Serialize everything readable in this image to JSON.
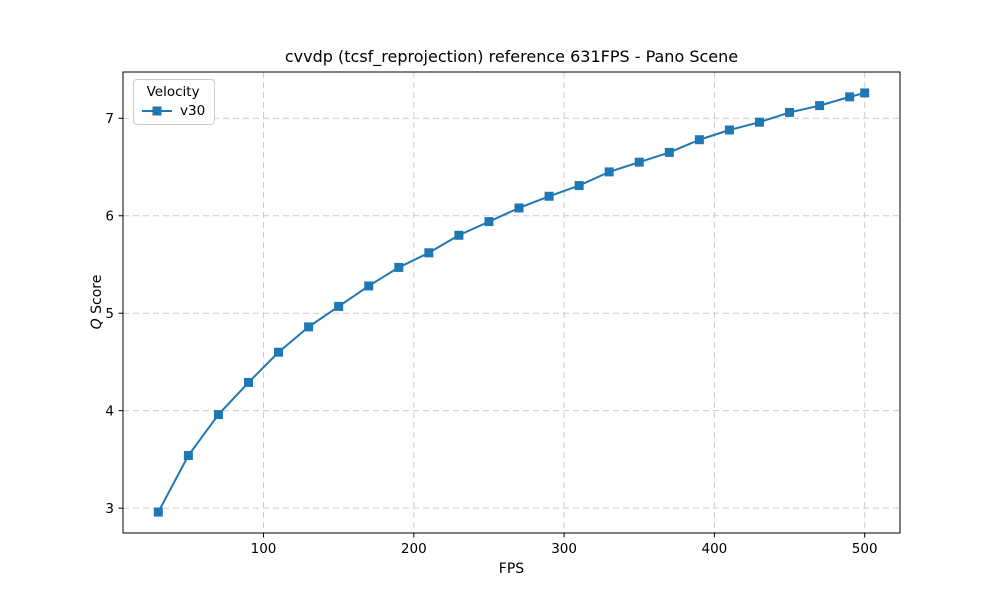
{
  "chart_data": {
    "type": "line",
    "title": "cvvdp (tcsf_reprojection) reference 631FPS - Pano Scene",
    "xlabel": "FPS",
    "ylabel": "Q Score",
    "ylabel_italic": "Q",
    "ylabel_rest": " Score",
    "xlim": [
      6.5,
      523.5
    ],
    "ylim": [
      2.745,
      7.475
    ],
    "x_ticks": [
      100,
      200,
      300,
      400,
      500
    ],
    "y_ticks": [
      3,
      4,
      5,
      6,
      7
    ],
    "grid": true,
    "grid_color": "#cccccc",
    "axis_color": "#000000",
    "legend": {
      "title": "Velocity",
      "position": "upper-left",
      "entries": [
        {
          "label": "v30",
          "color": "#1f77b4",
          "marker": "square"
        }
      ]
    },
    "series": [
      {
        "name": "v30",
        "color": "#1f77b4",
        "marker": "square",
        "x": [
          30,
          50,
          70,
          90,
          110,
          130,
          150,
          170,
          190,
          210,
          230,
          250,
          270,
          290,
          310,
          330,
          350,
          370,
          390,
          410,
          430,
          450,
          470,
          490,
          500
        ],
        "y": [
          2.96,
          3.54,
          3.96,
          4.29,
          4.6,
          4.86,
          5.07,
          5.28,
          5.47,
          5.62,
          5.8,
          5.94,
          6.08,
          6.2,
          6.31,
          6.45,
          6.55,
          6.65,
          6.78,
          6.88,
          6.96,
          7.06,
          7.13,
          7.22,
          7.26
        ]
      }
    ]
  }
}
